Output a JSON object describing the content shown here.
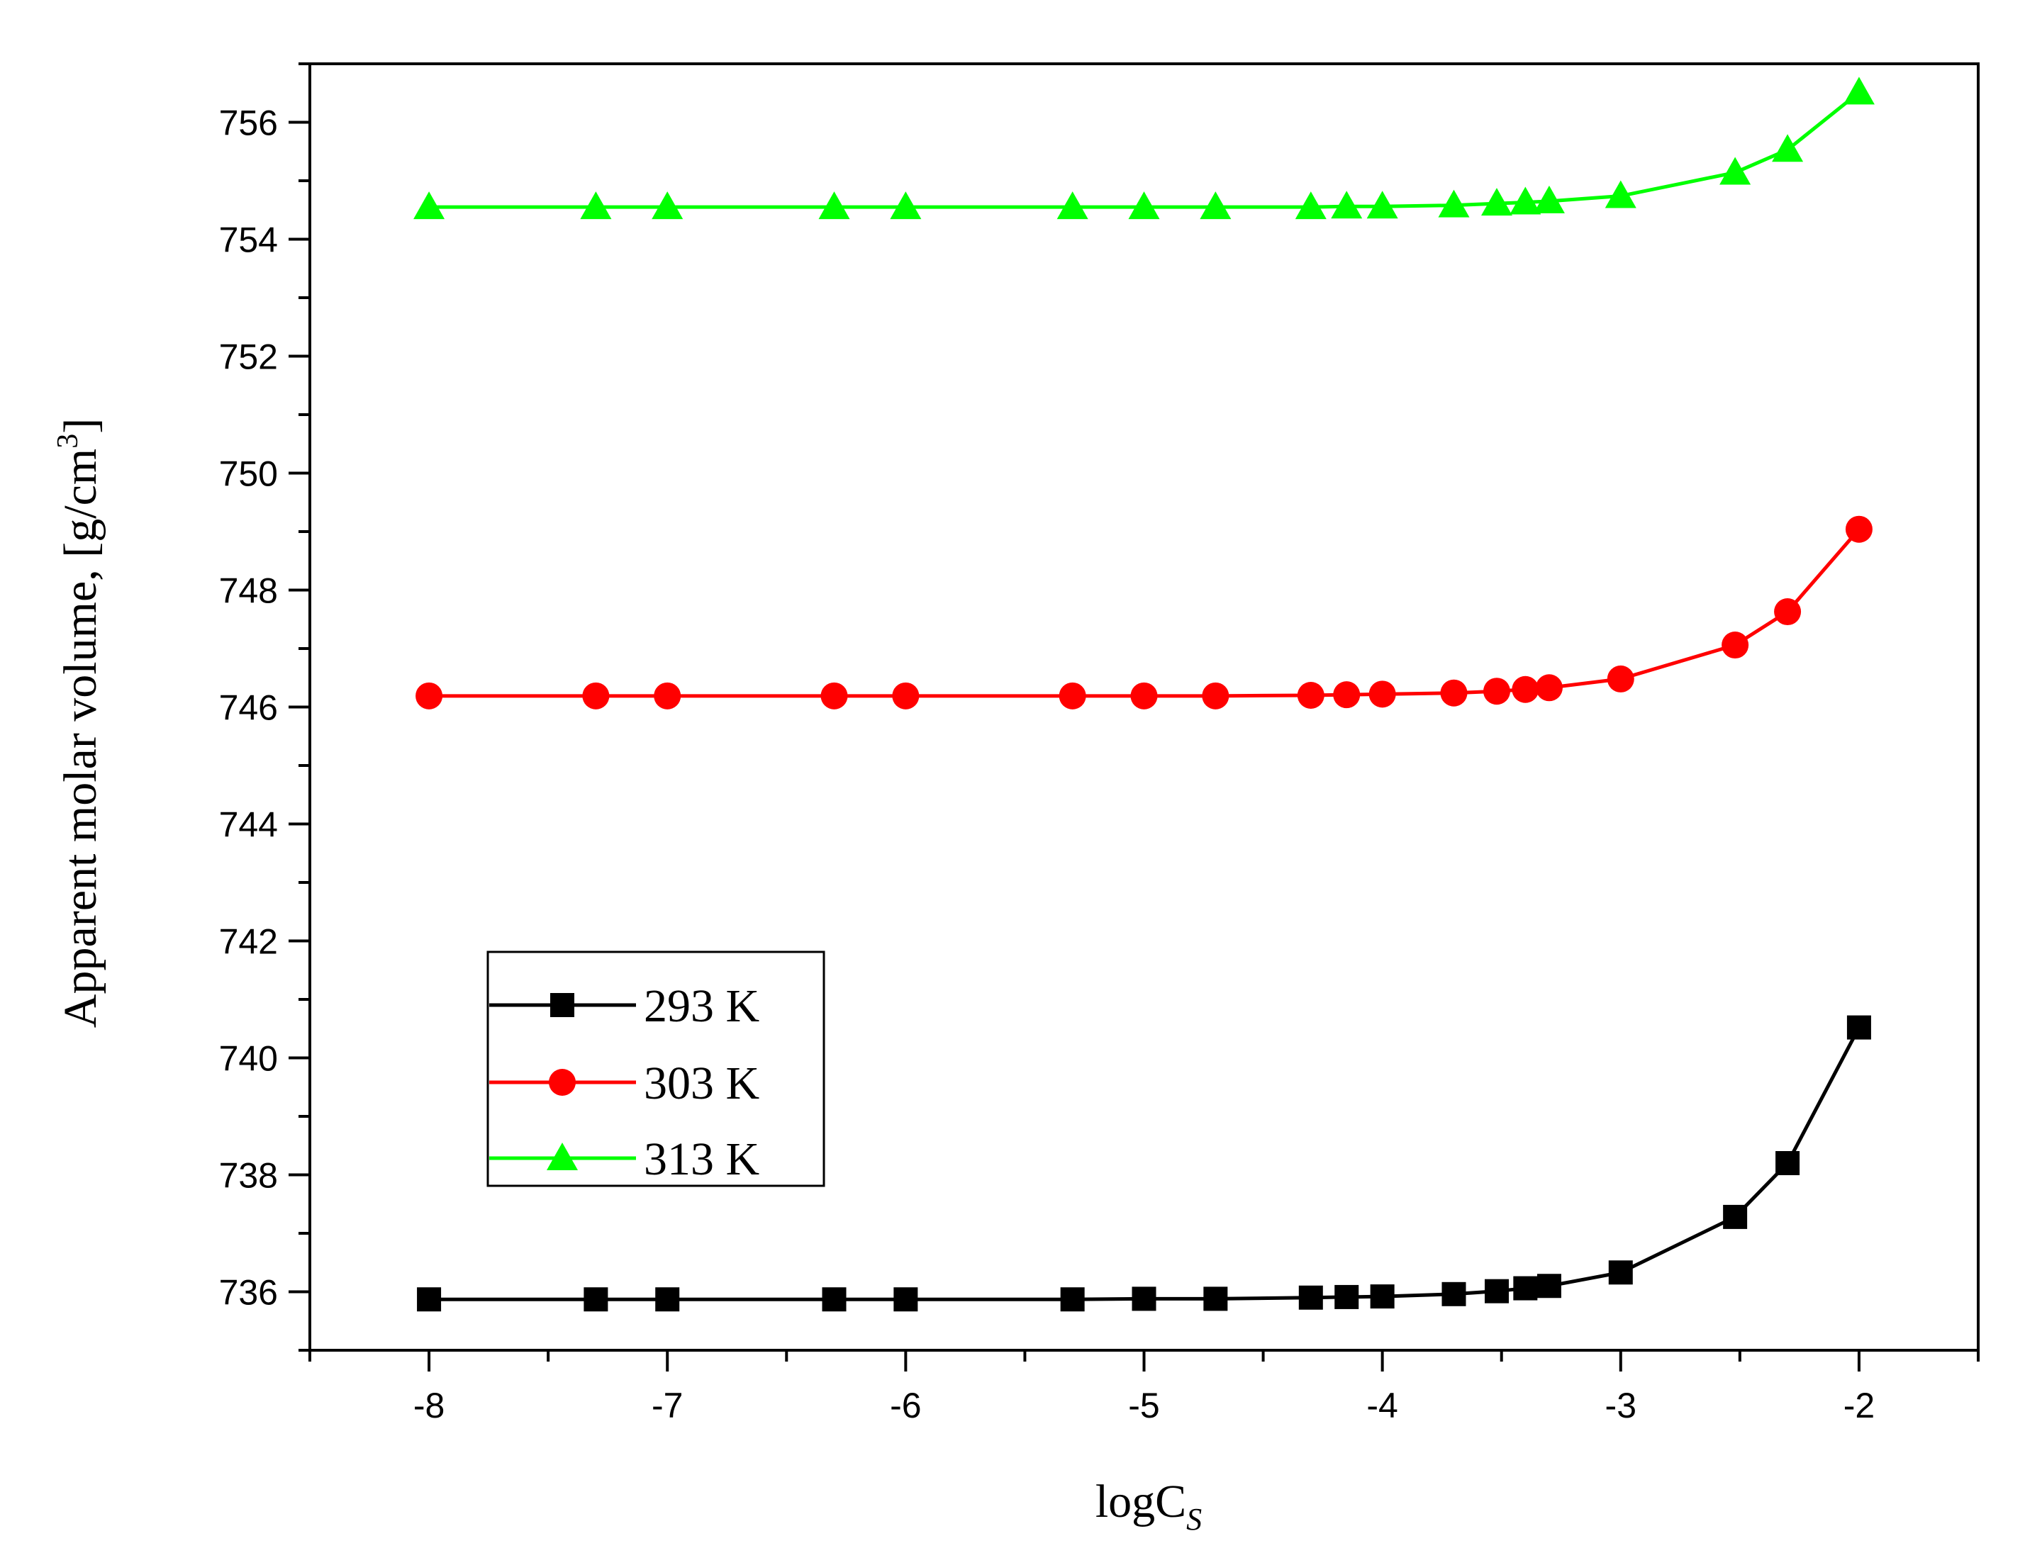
{
  "chart_data": {
    "type": "line",
    "title": "",
    "xlabel": "logC",
    "xlabel_sub": "S",
    "ylabel": "Apparent molar volume, [g/cm",
    "ylabel_sup": "3",
    "ylabel_end": "]",
    "xlim": [
      -8.5,
      -1.5
    ],
    "ylim": [
      735,
      757
    ],
    "x_ticks": [
      -8,
      -7,
      -6,
      -5,
      -4,
      -3,
      -2
    ],
    "x_tick_labels": [
      "-8",
      "-7",
      "-6",
      "-5",
      "-4",
      "-3",
      "-2"
    ],
    "y_ticks": [
      736,
      738,
      740,
      742,
      744,
      746,
      748,
      750,
      752,
      754,
      756
    ],
    "y_tick_labels": [
      "736",
      "738",
      "740",
      "742",
      "744",
      "746",
      "748",
      "750",
      "752",
      "754",
      "756"
    ],
    "legend_position": "lower-left",
    "x": [
      -8,
      -7.3,
      -7,
      -6.3,
      -6,
      -5.3,
      -5,
      -4.7,
      -4.3,
      -4.15,
      -4,
      -3.7,
      -3.52,
      -3.4,
      -3.3,
      -3,
      -2.52,
      -2.3,
      -2
    ],
    "series": [
      {
        "name": "293 K",
        "color": "#000000",
        "marker": "square",
        "values": [
          735.87,
          735.87,
          735.87,
          735.87,
          735.87,
          735.87,
          735.88,
          735.88,
          735.9,
          735.91,
          735.92,
          735.96,
          736.01,
          736.06,
          736.1,
          736.33,
          737.28,
          738.2,
          740.52
        ]
      },
      {
        "name": "303 K",
        "color": "#ff0000",
        "marker": "circle",
        "values": [
          746.19,
          746.19,
          746.19,
          746.19,
          746.19,
          746.19,
          746.19,
          746.19,
          746.2,
          746.21,
          746.22,
          746.24,
          746.27,
          746.3,
          746.33,
          746.48,
          747.06,
          747.63,
          749.04
        ]
      },
      {
        "name": "313 K",
        "color": "#00ff00",
        "marker": "triangle",
        "values": [
          754.55,
          754.55,
          754.55,
          754.55,
          754.55,
          754.55,
          754.55,
          754.55,
          754.55,
          754.56,
          754.56,
          754.58,
          754.61,
          754.63,
          754.65,
          754.74,
          755.14,
          755.53,
          756.51
        ]
      }
    ]
  }
}
